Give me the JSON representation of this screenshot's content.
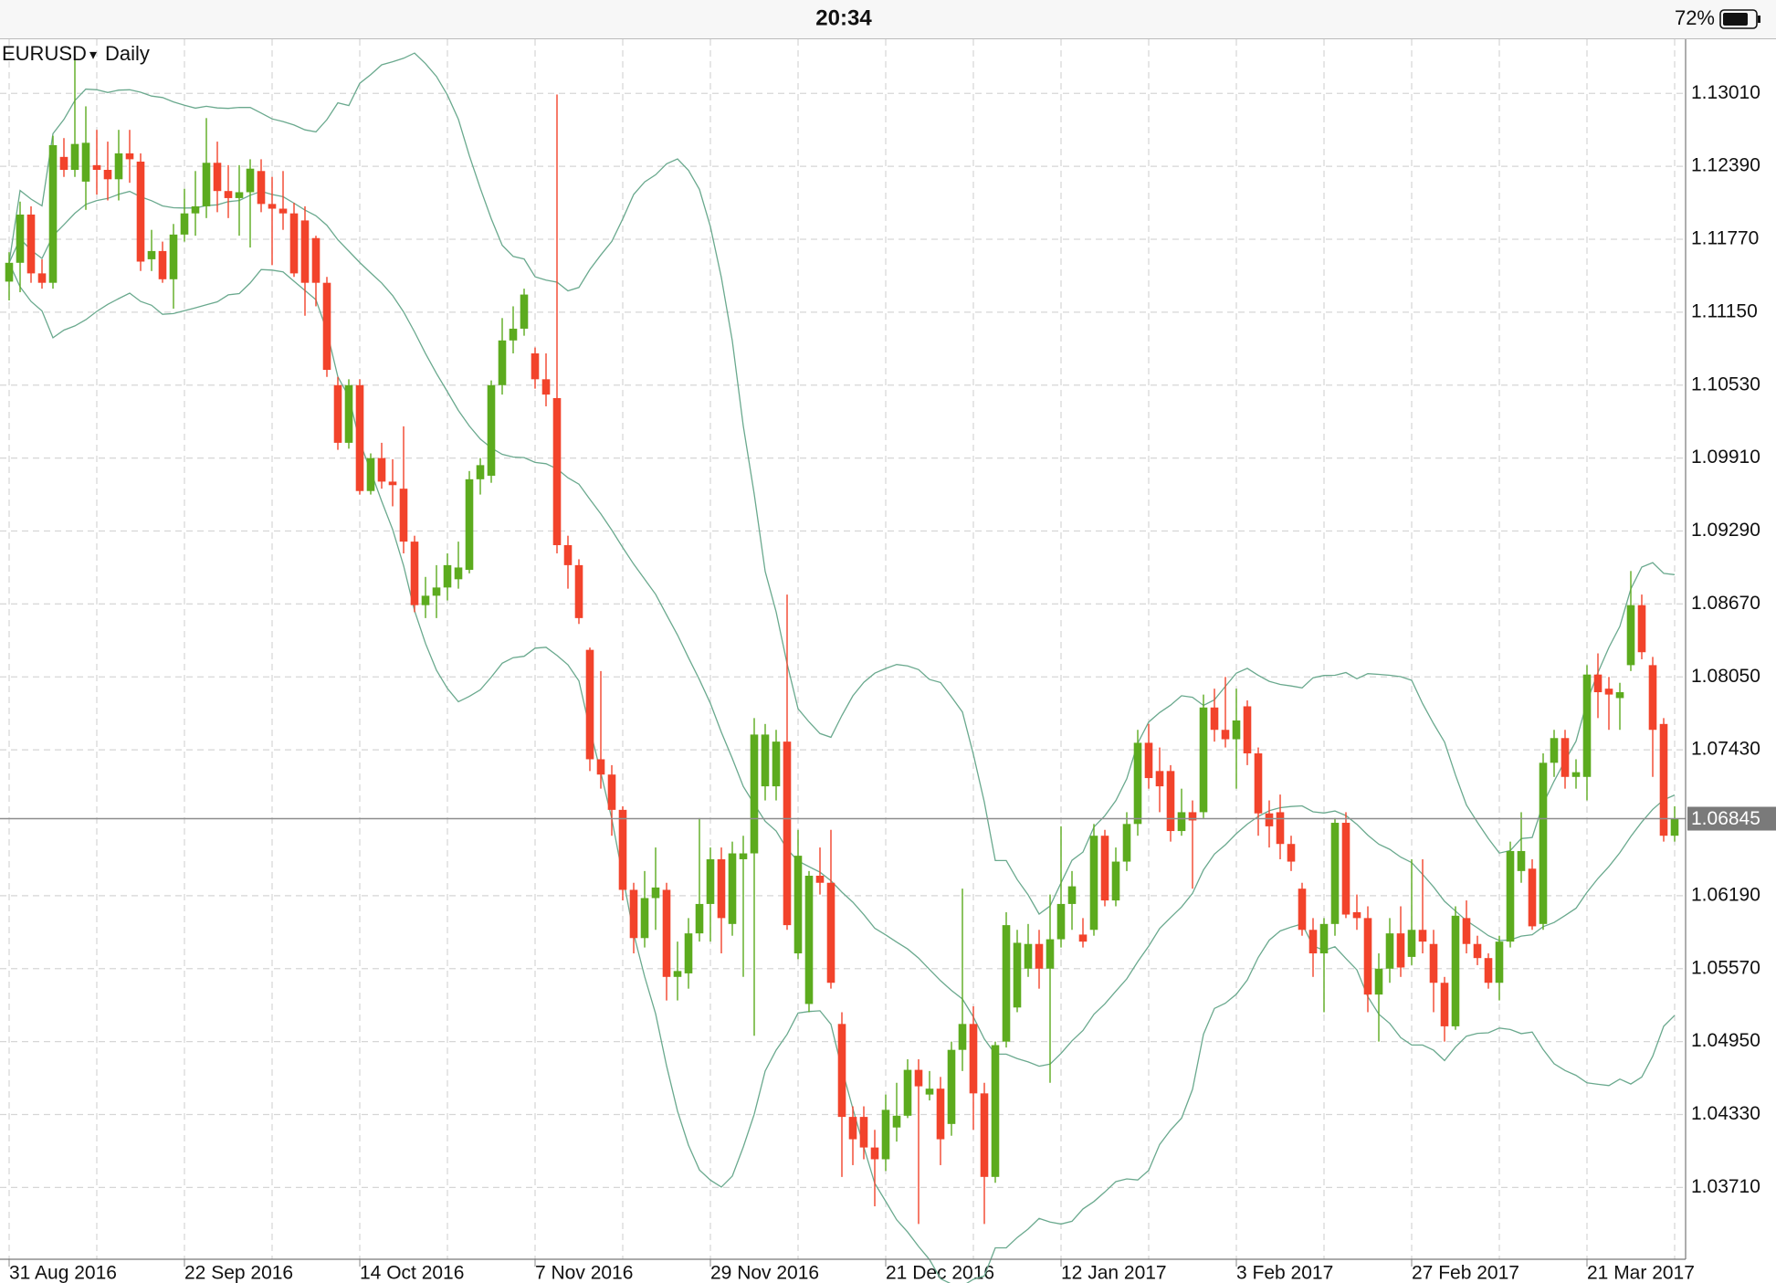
{
  "status_bar": {
    "time": "20:34",
    "battery": "72%"
  },
  "chart_data": {
    "type": "candlestick",
    "symbol": "EURUSD",
    "timeframe": "Daily",
    "up_color": "#5cab1e",
    "down_color": "#f2432b",
    "band_color": "#6aa98e",
    "grid": true,
    "ylim": [
      1.031,
      1.1347
    ],
    "yticks": [
      {
        "value": 1.1301,
        "label": "1.13010"
      },
      {
        "value": 1.1239,
        "label": "1.12390"
      },
      {
        "value": 1.1177,
        "label": "1.11770"
      },
      {
        "value": 1.1115,
        "label": "1.11150"
      },
      {
        "value": 1.1053,
        "label": "1.10530"
      },
      {
        "value": 1.0991,
        "label": "1.09910"
      },
      {
        "value": 1.0929,
        "label": "1.09290"
      },
      {
        "value": 1.0867,
        "label": "1.08670"
      },
      {
        "value": 1.0805,
        "label": "1.08050"
      },
      {
        "value": 1.0743,
        "label": "1.07430"
      },
      {
        "value": 1.0619,
        "label": "1.06190"
      },
      {
        "value": 1.0557,
        "label": "1.05570"
      },
      {
        "value": 1.0495,
        "label": "1.04950"
      },
      {
        "value": 1.0433,
        "label": "1.04330"
      },
      {
        "value": 1.0371,
        "label": "1.03710"
      }
    ],
    "last_price": 1.06845,
    "categories": [
      "31 Aug 2016",
      null,
      null,
      null,
      null,
      null,
      null,
      null,
      null,
      null,
      null,
      null,
      null,
      null,
      null,
      null,
      "22 Sep 2016",
      null,
      null,
      null,
      null,
      null,
      null,
      null,
      null,
      null,
      null,
      null,
      null,
      null,
      null,
      null,
      "14 Oct 2016",
      null,
      null,
      null,
      null,
      null,
      null,
      null,
      null,
      null,
      null,
      null,
      null,
      null,
      null,
      null,
      "7 Nov 2016",
      null,
      null,
      null,
      null,
      null,
      null,
      null,
      null,
      null,
      null,
      null,
      null,
      null,
      null,
      null,
      "29 Nov 2016",
      null,
      null,
      null,
      null,
      null,
      null,
      null,
      null,
      null,
      null,
      null,
      null,
      null,
      null,
      null,
      "21 Dec 2016",
      null,
      null,
      null,
      null,
      null,
      null,
      null,
      null,
      null,
      null,
      null,
      null,
      null,
      null,
      null,
      "12 Jan 2017",
      null,
      null,
      null,
      null,
      null,
      null,
      null,
      null,
      null,
      null,
      null,
      null,
      null,
      null,
      null,
      "3 Feb 2017",
      null,
      null,
      null,
      null,
      null,
      null,
      null,
      null,
      null,
      null,
      null,
      null,
      null,
      null,
      null,
      "27 Feb 2017",
      null,
      null,
      null,
      null,
      null,
      null,
      null,
      null,
      null,
      null,
      null,
      null,
      null,
      null,
      null,
      "21 Mar 2017",
      null,
      null,
      null,
      null,
      null,
      null,
      null,
      null
    ],
    "open": [
      1.1141,
      1.1157,
      1.1198,
      1.1148,
      1.114,
      1.1247,
      1.1236,
      1.1226,
      1.124,
      1.1236,
      1.1228,
      1.125,
      1.1243,
      1.116,
      1.1167,
      1.1143,
      1.1181,
      1.1199,
      1.1205,
      1.1242,
      1.1218,
      1.1212,
      1.1217,
      1.1235,
      1.1207,
      1.1203,
      1.1199,
      1.1193,
      1.1178,
      1.114,
      1.1053,
      1.1004,
      1.1053,
      1.0963,
      1.0991,
      1.0971,
      1.0965,
      1.092,
      1.0866,
      1.0874,
      1.0881,
      1.0888,
      1.0896,
      1.0973,
      1.0976,
      1.1053,
      1.1091,
      1.1101,
      1.108,
      1.1058,
      1.1042,
      1.0917,
      1.09,
      1.0828,
      1.0735,
      1.0722,
      1.0692,
      1.0624,
      1.0583,
      1.0617,
      1.0624,
      1.055,
      1.0553,
      1.0587,
      1.0612,
      1.065,
      1.0595,
      1.065,
      1.0655,
      1.0712,
      1.0712,
      1.075,
      1.057,
      1.0527,
      1.0636,
      1.063,
      1.051,
      1.0431,
      1.0431,
      1.0405,
      1.0395,
      1.0422,
      1.0432,
      1.0471,
      1.045,
      1.0455,
      1.0425,
      1.0488,
      1.051,
      1.0451,
      1.038,
      1.0495,
      1.0524,
      1.0557,
      1.0578,
      1.0557,
      1.0582,
      1.0612,
      1.0586,
      1.059,
      1.067,
      1.0615,
      1.0648,
      1.068,
      1.0749,
      1.0725,
      1.0725,
      1.0674,
      1.069,
      1.069,
      1.0779,
      1.076,
      1.0752,
      1.078,
      1.074,
      1.0689,
      1.069,
      1.0663,
      1.0625,
      1.059,
      1.057,
      1.0595,
      1.0681,
      1.0605,
      1.06,
      1.0535,
      1.0557,
      1.0587,
      1.0567,
      1.059,
      1.0578,
      1.0545,
      1.0508,
      1.06,
      1.0578,
      1.0566,
      1.0545,
      1.058,
      1.064,
      1.0642,
      1.0595,
      1.0732,
      1.0753,
      1.072,
      1.072,
      1.0807,
      1.0795,
      1.0787,
      1.0815,
      1.0866,
      1.0815,
      1.0765,
      1.067
    ],
    "high": [
      1.1166,
      1.1209,
      1.1205,
      1.116,
      1.1265,
      1.1263,
      1.133,
      1.129,
      1.127,
      1.126,
      1.127,
      1.127,
      1.125,
      1.1185,
      1.1175,
      1.119,
      1.122,
      1.1235,
      1.128,
      1.126,
      1.124,
      1.124,
      1.1245,
      1.1245,
      1.123,
      1.1235,
      1.1208,
      1.1205,
      1.118,
      1.1145,
      1.106,
      1.1058,
      1.1058,
      1.0995,
      1.1004,
      1.099,
      1.1018,
      1.0925,
      1.089,
      1.09,
      1.091,
      1.092,
      1.098,
      1.0991,
      1.1057,
      1.111,
      1.112,
      1.1135,
      1.1085,
      1.108,
      1.13,
      1.0925,
      1.0905,
      1.083,
      1.081,
      1.073,
      1.0695,
      1.063,
      1.064,
      1.066,
      1.063,
      1.058,
      1.06,
      1.0685,
      1.066,
      1.066,
      1.0665,
      1.067,
      1.077,
      1.0765,
      1.076,
      1.0875,
      1.0675,
      1.064,
      1.066,
      1.0675,
      1.052,
      1.044,
      1.044,
      1.042,
      1.045,
      1.046,
      1.048,
      1.048,
      1.047,
      1.0465,
      1.0495,
      1.0625,
      1.0525,
      1.046,
      1.0495,
      1.0605,
      1.059,
      1.0595,
      1.059,
      1.062,
      1.0678,
      1.064,
      1.06,
      1.068,
      1.0675,
      1.066,
      1.069,
      1.076,
      1.0765,
      1.0745,
      1.073,
      1.071,
      1.07,
      1.079,
      1.0795,
      1.0805,
      1.0795,
      1.0785,
      1.0745,
      1.07,
      1.0705,
      1.067,
      1.063,
      1.06,
      1.06,
      1.0685,
      1.069,
      1.062,
      1.061,
      1.057,
      1.06,
      1.061,
      1.065,
      1.065,
      1.059,
      1.055,
      1.061,
      1.0615,
      1.0585,
      1.057,
      1.0585,
      1.0665,
      1.069,
      1.065,
      1.074,
      1.076,
      1.076,
      1.0735,
      1.0815,
      1.0825,
      1.0805,
      1.08,
      1.0895,
      1.0875,
      1.0822,
      1.077,
      1.0695
    ],
    "low": [
      1.1125,
      1.1132,
      1.114,
      1.1135,
      1.1135,
      1.123,
      1.123,
      1.1202,
      1.1215,
      1.121,
      1.121,
      1.1225,
      1.115,
      1.115,
      1.114,
      1.1118,
      1.1175,
      1.118,
      1.1195,
      1.12,
      1.1195,
      1.118,
      1.117,
      1.12,
      1.1155,
      1.1185,
      1.1145,
      1.1112,
      1.112,
      1.106,
      1.0998,
      1.0999,
      1.096,
      1.096,
      1.0965,
      1.095,
      1.091,
      1.086,
      1.0855,
      1.0855,
      1.087,
      1.088,
      1.0893,
      1.096,
      1.097,
      1.1045,
      1.108,
      1.1095,
      1.105,
      1.1035,
      1.091,
      1.088,
      1.085,
      1.0725,
      1.071,
      1.067,
      1.0615,
      1.057,
      1.0575,
      1.059,
      1.053,
      1.053,
      1.054,
      1.058,
      1.058,
      1.057,
      1.0585,
      1.055,
      1.05,
      1.07,
      1.07,
      1.059,
      1.0565,
      1.052,
      1.062,
      1.054,
      1.038,
      1.039,
      1.0395,
      1.0355,
      1.0385,
      1.041,
      1.043,
      1.034,
      1.0445,
      1.039,
      1.0415,
      1.047,
      1.042,
      1.034,
      1.0375,
      1.049,
      1.052,
      1.055,
      1.054,
      1.046,
      1.0575,
      1.059,
      1.0575,
      1.0585,
      1.061,
      1.061,
      1.064,
      1.067,
      1.071,
      1.069,
      1.0665,
      1.067,
      1.0625,
      1.0685,
      1.075,
      1.0745,
      1.071,
      1.073,
      1.067,
      1.066,
      1.065,
      1.064,
      1.0585,
      1.055,
      1.052,
      1.0585,
      1.06,
      1.059,
      1.052,
      1.0495,
      1.0545,
      1.055,
      1.056,
      1.057,
      1.052,
      1.0495,
      1.0505,
      1.057,
      1.056,
      1.054,
      1.053,
      1.0575,
      1.063,
      1.059,
      1.059,
      1.072,
      1.071,
      1.071,
      1.07,
      1.077,
      1.076,
      1.076,
      1.081,
      1.082,
      1.072,
      1.0665,
      1.0665
    ],
    "close": [
      1.1157,
      1.1198,
      1.1148,
      1.114,
      1.1257,
      1.1236,
      1.1258,
      1.1259,
      1.1236,
      1.1228,
      1.125,
      1.1245,
      1.1158,
      1.1167,
      1.1143,
      1.1181,
      1.1199,
      1.1205,
      1.1242,
      1.1218,
      1.1212,
      1.1217,
      1.1237,
      1.1207,
      1.1203,
      1.1199,
      1.1148,
      1.114,
      1.114,
      1.1066,
      1.1004,
      1.1053,
      1.0963,
      1.0991,
      1.0971,
      1.0968,
      1.092,
      1.0866,
      1.0874,
      1.0881,
      1.09,
      1.0898,
      1.0973,
      1.0985,
      1.1053,
      1.1091,
      1.1101,
      1.113,
      1.1058,
      1.1045,
      1.0917,
      1.09,
      1.0855,
      1.0735,
      1.0722,
      1.0692,
      1.0624,
      1.0583,
      1.0617,
      1.0626,
      1.055,
      1.0555,
      1.0587,
      1.0612,
      1.065,
      1.06,
      1.0655,
      1.0655,
      1.0756,
      1.0756,
      1.075,
      1.0594,
      1.0653,
      1.0636,
      1.063,
      1.0545,
      1.0431,
      1.0412,
      1.0405,
      1.0395,
      1.0437,
      1.0432,
      1.0471,
      1.0457,
      1.0455,
      1.0412,
      1.0488,
      1.051,
      1.0451,
      1.038,
      1.0492,
      1.0594,
      1.0579,
      1.0578,
      1.0557,
      1.0582,
      1.0612,
      1.0627,
      1.058,
      1.067,
      1.0615,
      1.0648,
      1.068,
      1.0749,
      1.0719,
      1.0712,
      1.0674,
      1.069,
      1.0683,
      1.0779,
      1.076,
      1.0752,
      1.0768,
      1.074,
      1.0689,
      1.0678,
      1.0663,
      1.0648,
      1.059,
      1.057,
      1.0595,
      1.0681,
      1.0603,
      1.06,
      1.0535,
      1.0557,
      1.0587,
      1.0558,
      1.059,
      1.058,
      1.0545,
      1.0508,
      1.0602,
      1.0578,
      1.0566,
      1.0545,
      1.058,
      1.0657,
      1.0657,
      1.0593,
      1.0732,
      1.0753,
      1.072,
      1.0724,
      1.0807,
      1.0792,
      1.079,
      1.0792,
      1.0866,
      1.0826,
      1.076,
      1.067,
      1.06845
    ]
  }
}
